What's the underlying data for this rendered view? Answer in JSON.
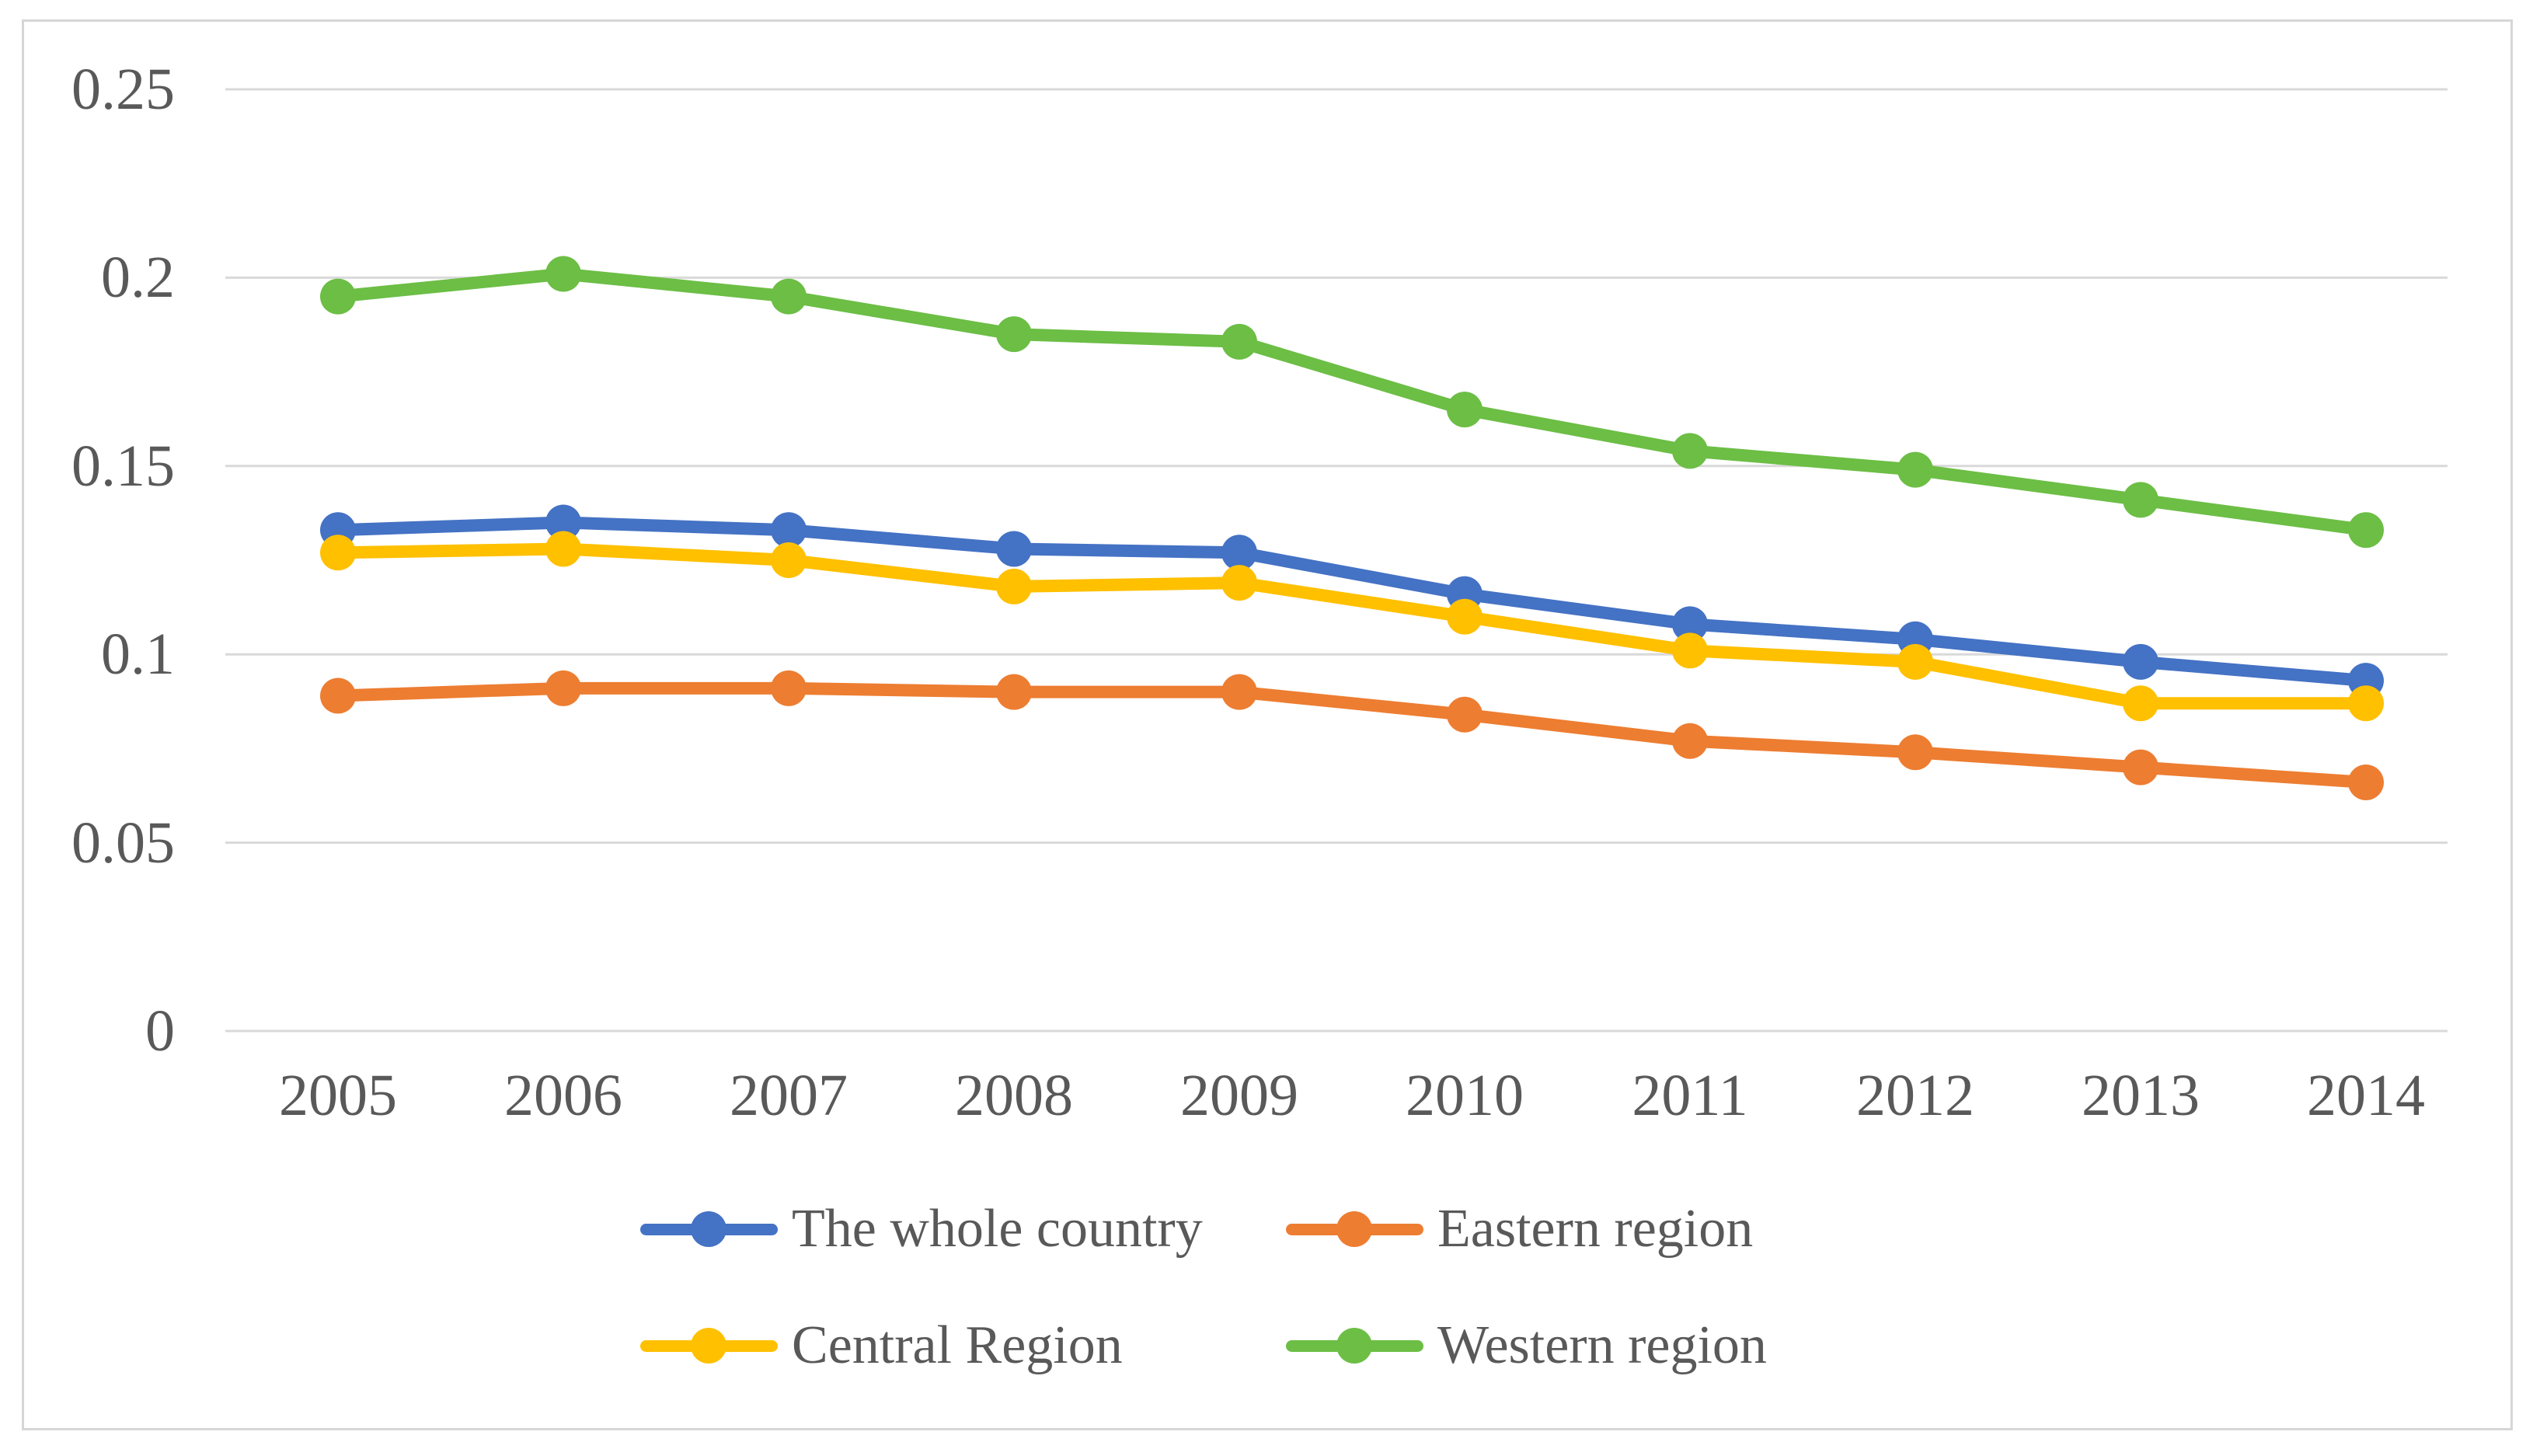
{
  "chart_data": {
    "type": "line",
    "title": "",
    "xlabel": "",
    "ylabel": "",
    "categories": [
      "2005",
      "2006",
      "2007",
      "2008",
      "2009",
      "2010",
      "2011",
      "2012",
      "2013",
      "2014"
    ],
    "series": [
      {
        "name": "The whole country",
        "color": "#4472C4",
        "values": [
          0.133,
          0.135,
          0.133,
          0.128,
          0.127,
          0.116,
          0.108,
          0.104,
          0.098,
          0.093
        ]
      },
      {
        "name": "Eastern region",
        "color": "#ED7D31",
        "values": [
          0.089,
          0.091,
          0.091,
          0.09,
          0.09,
          0.084,
          0.077,
          0.074,
          0.07,
          0.066
        ]
      },
      {
        "name": "Central Region",
        "color": "#FFC000",
        "values": [
          0.127,
          0.128,
          0.125,
          0.118,
          0.119,
          0.11,
          0.101,
          0.098,
          0.087,
          0.087
        ]
      },
      {
        "name": "Western region",
        "color": "#6CBE45",
        "values": [
          0.195,
          0.201,
          0.195,
          0.185,
          0.183,
          0.165,
          0.154,
          0.149,
          0.141,
          0.133
        ]
      }
    ],
    "y_ticks": [
      "0.25",
      "0.2",
      "0.15",
      "0.1",
      "0.05",
      "0"
    ],
    "y_tick_values": [
      0.25,
      0.2,
      0.15,
      0.1,
      0.05,
      0
    ],
    "ylim": [
      0,
      0.25
    ],
    "grid": "horizontal",
    "gridline_color": "#D9D9D9",
    "text_color": "#595959",
    "frame_border_color": "#D6D6D6",
    "legend_position": "bottom",
    "legend_rows": [
      [
        "The whole country",
        "Eastern region"
      ],
      [
        "Central Region",
        "Western region"
      ]
    ],
    "marker": "circle",
    "markers_on": true
  }
}
